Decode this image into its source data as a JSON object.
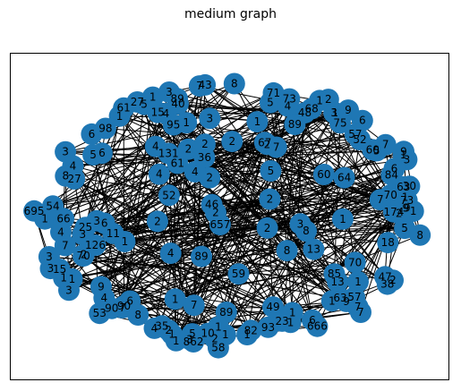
{
  "figure": {
    "title": "medium graph",
    "node_color": "#1f77b4",
    "edge_color": "#000000",
    "background": "#ffffff"
  },
  "graph": {
    "visible_node_labels": [
      "131",
      "174",
      "666",
      "1",
      "1",
      "71",
      "85",
      "53",
      "6",
      "6",
      "695",
      "8",
      "7",
      "1",
      "38",
      "1",
      "84",
      "9",
      "862",
      "25",
      "6",
      "126",
      "7",
      "49",
      "46",
      "4",
      "2",
      "1",
      "5",
      "2",
      "13",
      "2",
      "1",
      "1",
      "68",
      "5",
      "89",
      "4",
      "61",
      "7",
      "1",
      "7",
      "13",
      "1",
      "67",
      "2",
      "657",
      "9",
      "57",
      "89",
      "1",
      "90",
      "3",
      "2",
      "3",
      "1",
      "3",
      "11",
      "98",
      "3",
      "3",
      "10",
      "6",
      "4",
      "1",
      "9",
      "27",
      "6",
      "2",
      "8",
      "43",
      "52",
      "5",
      "75",
      "36",
      "48",
      "47",
      "1",
      "60",
      "1",
      "52",
      "70",
      "89",
      "27",
      "9",
      "59",
      "64",
      "70",
      "95",
      "40",
      "8",
      "66",
      "73",
      "1",
      "2",
      "4",
      "6",
      "7",
      "8",
      "3",
      "2",
      "5",
      "7",
      "1",
      "2",
      "4",
      "1",
      "5",
      "2",
      "15",
      "23",
      "61",
      "82",
      "35",
      "2",
      "70",
      "4",
      "9",
      "1",
      "3",
      "1",
      "57",
      "90",
      "1",
      "6",
      "63",
      "89",
      "30",
      "2",
      "63",
      "1",
      "2",
      "93",
      "15",
      "4",
      "3",
      "4",
      "58",
      "54",
      "7",
      "18",
      "4",
      "3",
      "2",
      "5",
      "8",
      "7",
      "1",
      "3",
      "60",
      "1",
      "8",
      "3",
      "73",
      "5",
      "1",
      "7",
      "4",
      "3",
      "9",
      "2"
    ]
  }
}
